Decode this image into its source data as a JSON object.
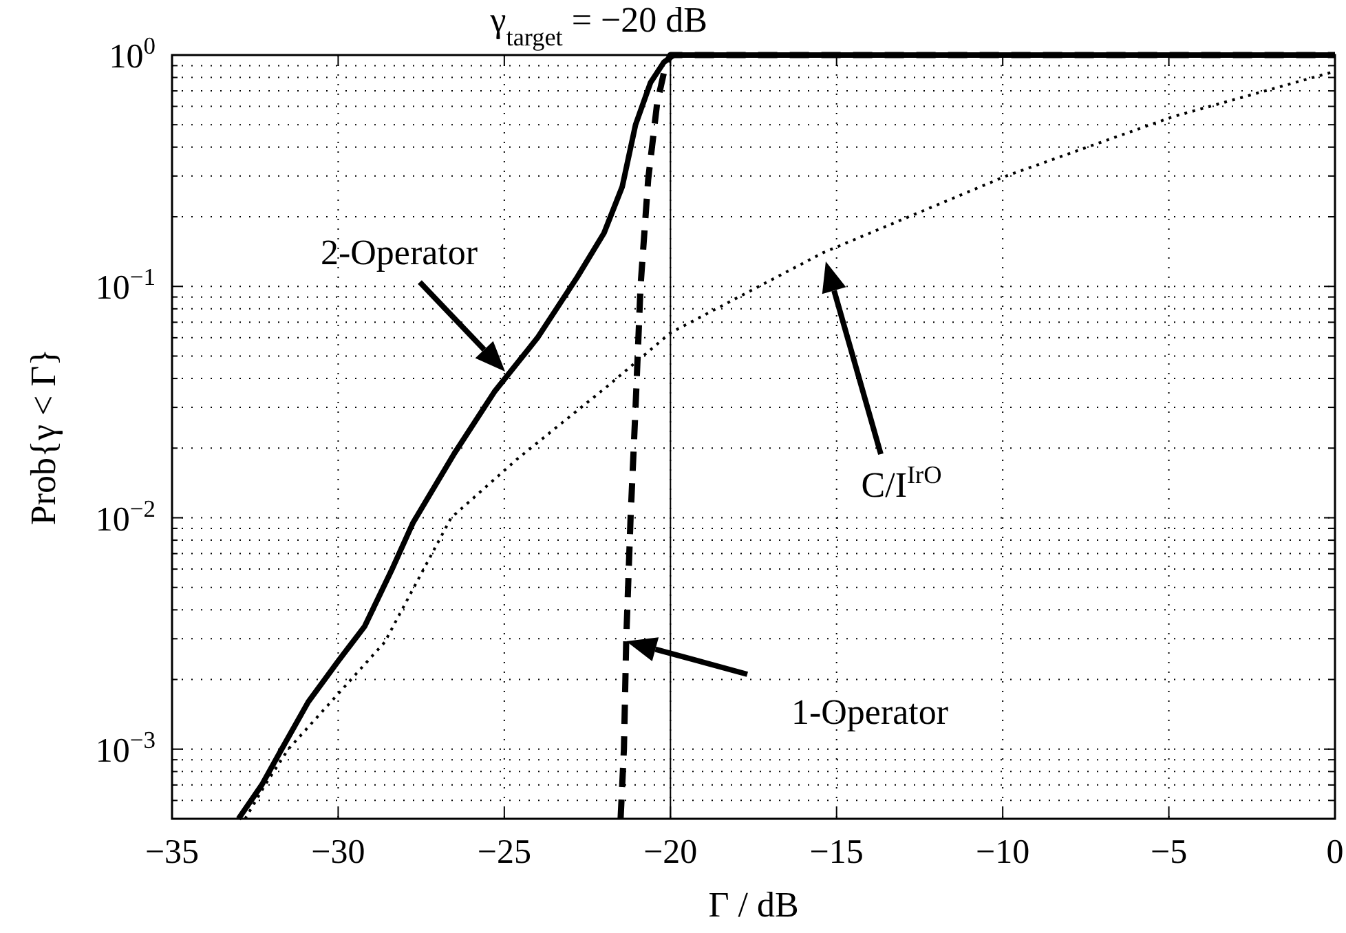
{
  "chart_data": {
    "type": "line",
    "xlabel": "Γ / dB",
    "ylabel": "Prob{γ < Γ}",
    "log": "y",
    "grid": true,
    "xlim": [
      -35,
      0
    ],
    "ylim": [
      0.0005,
      1
    ],
    "xticks": [
      {
        "value": -35,
        "label": "−35"
      },
      {
        "value": -30,
        "label": "−30"
      },
      {
        "value": -25,
        "label": "−25"
      },
      {
        "value": -20,
        "label": "−20"
      },
      {
        "value": -15,
        "label": "−15"
      },
      {
        "value": -10,
        "label": "−10"
      },
      {
        "value": -5,
        "label": "−5"
      },
      {
        "value": 0,
        "label": "0"
      }
    ],
    "yticks": [
      {
        "value": 0.001,
        "label": "10$^{−3}$"
      },
      {
        "value": 0.01,
        "label": "10$^{−2}$"
      },
      {
        "value": 0.1,
        "label": "10$^{−1}$"
      },
      {
        "value": 1,
        "label": "10$^{0}$"
      }
    ],
    "series": [
      {
        "color": "#000000",
        "line_style": "solid",
        "x": [
          -33.0,
          -32.3,
          -31.7,
          -30.9,
          -30.0,
          -29.2,
          -28.4,
          -27.75,
          -26.5,
          -25.3,
          -24.0,
          -22.8,
          -22.0,
          -21.45,
          -21.05,
          -20.6,
          -20.2,
          -19.9,
          0
        ],
        "values": [
          0.0005,
          0.0007,
          0.001,
          0.0016,
          0.0024,
          0.0034,
          0.0059,
          0.0095,
          0.019,
          0.035,
          0.06,
          0.11,
          0.17,
          0.27,
          0.5,
          0.76,
          0.93,
          1,
          1
        ]
      },
      {
        "color": "#000000",
        "line_style": "dashed",
        "x": [
          -21.5,
          -21.4,
          -21.33,
          -21.2,
          -21.05,
          -20.9,
          -20.67,
          -20.4,
          -20.15,
          -20.0,
          0
        ],
        "values": [
          0.0005,
          0.001,
          0.003,
          0.01,
          0.03,
          0.1,
          0.29,
          0.62,
          0.9,
          1,
          1
        ]
      },
      {
        "color": "#000000",
        "line_style": "dotted",
        "x": [
          -32.8,
          -32.2,
          -31.5,
          -28.6,
          -27.4,
          -26.6,
          -24.6,
          -21.9,
          -20.0,
          -15.4,
          -9.9,
          -4.9,
          0
        ],
        "values": [
          0.0005,
          0.0007,
          0.001,
          0.0029,
          0.0061,
          0.01,
          0.018,
          0.037,
          0.063,
          0.14,
          0.3,
          0.54,
          0.85
        ]
      }
    ],
    "ref_lines": [
      {
        "axis": "x",
        "value": -20,
        "label": "γ$_{target}$ = −20 dB",
        "color": "#000000",
        "line_style": "solid"
      }
    ],
    "annotations": [
      "2-Operator",
      "1-Operator",
      "C/I$^{IrO}$"
    ]
  }
}
